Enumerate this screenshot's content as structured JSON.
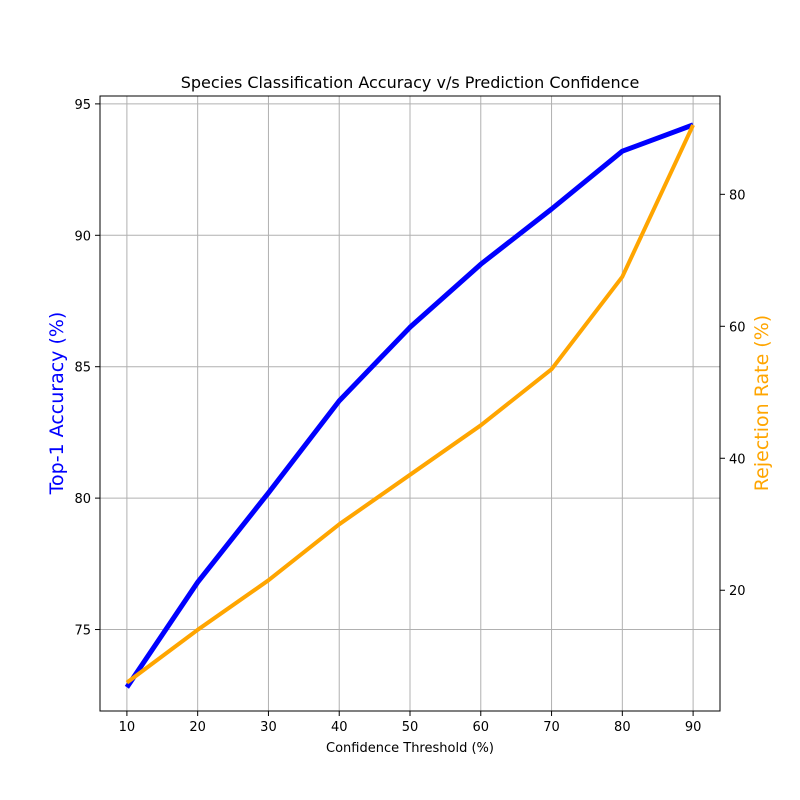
{
  "chart_data": {
    "type": "line",
    "title": "Species Classification Accuracy v/s Prediction Confidence",
    "xlabel": "Confidence Threshold (%)",
    "ylabel_left": "Top-1 Accuracy (%)",
    "ylabel_right": "Rejection Rate (%)",
    "x": [
      10,
      20,
      30,
      40,
      50,
      60,
      70,
      80,
      90
    ],
    "x_ticks": [
      10,
      20,
      30,
      40,
      50,
      60,
      70,
      80,
      90
    ],
    "xlim": [
      6.2,
      93.8
    ],
    "y_left_ticks": [
      75,
      80,
      85,
      90,
      95
    ],
    "ylim_left": [
      71.9,
      95.3
    ],
    "y_right_ticks": [
      20,
      40,
      60,
      80
    ],
    "ylim_right": [
      1.7,
      94.9
    ],
    "grid": true,
    "series": [
      {
        "axis": "left",
        "color": "#0000ff",
        "values": [
          72.8,
          76.8,
          80.2,
          83.7,
          86.5,
          88.9,
          91.0,
          93.2,
          94.2
        ]
      },
      {
        "axis": "right",
        "color": "#ffa500",
        "values": [
          6.0,
          14.0,
          21.5,
          30.0,
          37.5,
          45.0,
          53.5,
          67.5,
          90.5
        ]
      }
    ],
    "label_colors": {
      "left": "#0000ff",
      "right": "#ffa500"
    }
  }
}
